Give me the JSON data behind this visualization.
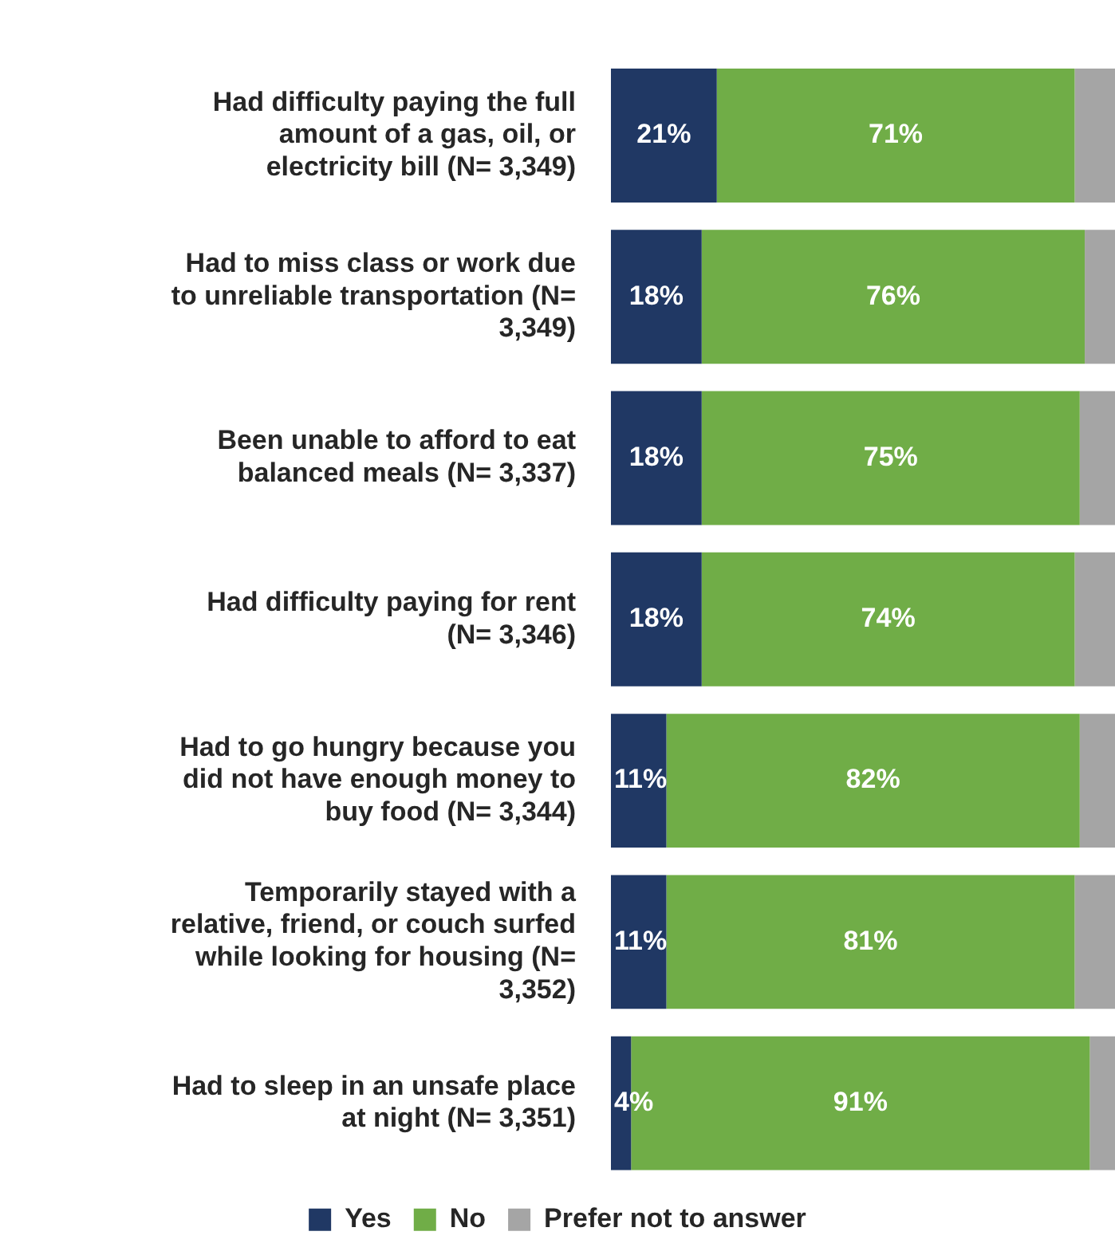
{
  "chart_data": {
    "type": "bar",
    "orientation": "horizontal",
    "stacked": true,
    "categories": [
      "Had difficulty paying the full amount of a gas, oil, or electricity bill (N= 3,349)",
      "Had to miss class or work due to unreliable transportation (N= 3,349)",
      "Been unable to afford to eat balanced meals (N= 3,337)",
      "Had difficulty paying for rent (N= 3,346)",
      "Had to go hungry because you did not have enough money to buy food (N= 3,344)",
      "Temporarily stayed with a relative, friend, or couch surfed while looking for housing (N= 3,352)",
      "Had to sleep in an unsafe place at night (N= 3,351)"
    ],
    "series": [
      {
        "name": "Yes",
        "color": "#203864",
        "values": [
          21,
          18,
          18,
          18,
          11,
          11,
          4
        ],
        "value_labels": [
          "21%",
          "18%",
          "18%",
          "18%",
          "11%",
          "11%",
          "4%"
        ]
      },
      {
        "name": "No",
        "color": "#70ad47",
        "values": [
          71,
          76,
          75,
          74,
          82,
          81,
          91
        ],
        "value_labels": [
          "71%",
          "76%",
          "75%",
          "74%",
          "82%",
          "81%",
          "91%"
        ]
      },
      {
        "name": "Prefer not to answer",
        "color": "#a5a5a5",
        "values": [
          8,
          6,
          7,
          8,
          7,
          8,
          5
        ]
      }
    ],
    "xlim": [
      0,
      100
    ],
    "tick_labels": "y",
    "legend": "bottom"
  }
}
